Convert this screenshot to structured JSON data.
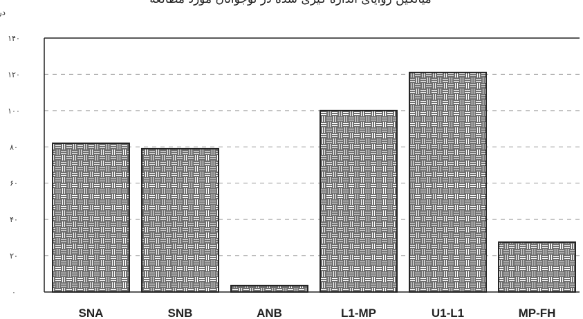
{
  "chart_data": {
    "type": "bar",
    "title": "میانگین زوایای اندازه گیری شده در نوجوانان مورد مطالعه",
    "ylabel": "درجه",
    "xlabel": "",
    "categories": [
      "SNA",
      "SNB",
      "ANB",
      "L1-MP",
      "U1-L1",
      "MP-FH"
    ],
    "values": [
      82,
      79,
      3.5,
      100,
      121,
      27.5
    ],
    "ylim": [
      0,
      140
    ],
    "yticks": [
      0,
      20,
      40,
      60,
      80,
      100,
      120,
      140
    ],
    "ytick_labels": [
      "۰",
      "۲۰",
      "۴۰",
      "۶۰",
      "۸۰",
      "۱۰۰",
      "۱۲۰",
      "۱۴۰"
    ],
    "grid": true,
    "legend": "none",
    "colors": {
      "bar_fill": "#ffffff",
      "bar_pattern": "#333333",
      "bar_border": "#222222",
      "grid": "#999999"
    }
  }
}
